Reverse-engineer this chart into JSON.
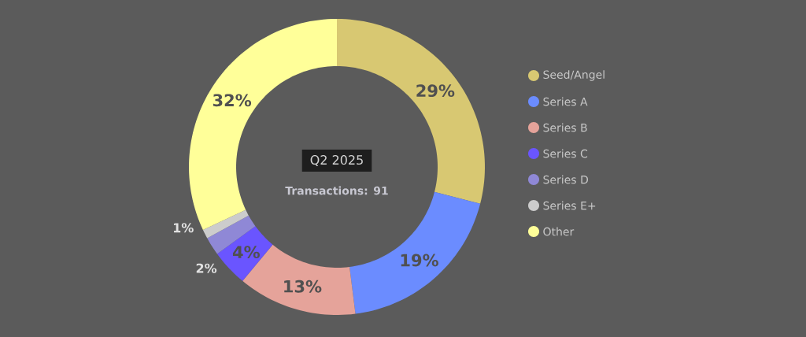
{
  "chart_data": {
    "type": "donut",
    "title": "Q2 2025",
    "subtitle": "Transactions: 91",
    "categories": [
      "Seed/Angel",
      "Series A",
      "Series B",
      "Series C",
      "Series D",
      "Series E+",
      "Other"
    ],
    "values": [
      29,
      19,
      13,
      4,
      2,
      1,
      32
    ],
    "colors": [
      "#d8c872",
      "#6b8cff",
      "#e5a39a",
      "#6a55ff",
      "#8f88d6",
      "#cccccc",
      "#ffff99"
    ],
    "value_labels": [
      "29%",
      "19%",
      "13%",
      "4%",
      "2%",
      "1%",
      "32%"
    ],
    "legend": "right"
  }
}
